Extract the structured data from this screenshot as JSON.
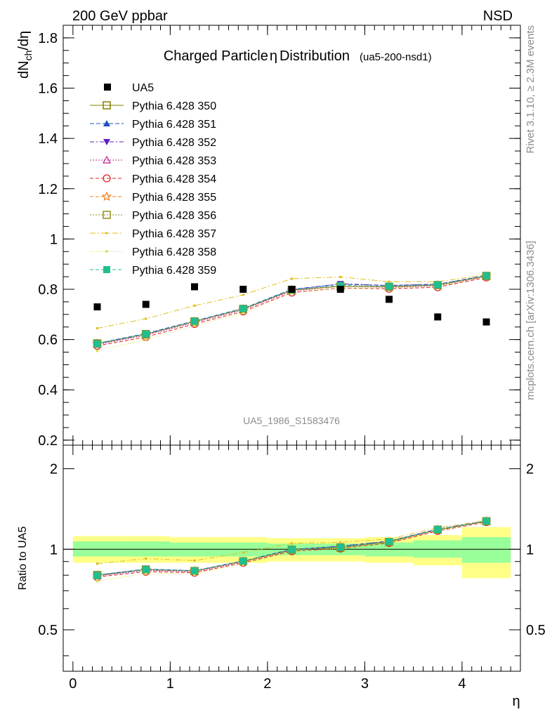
{
  "header": {
    "left": "200 GeV ppbar",
    "right": "NSD"
  },
  "side_labels": {
    "rivet": "Rivet 3.1.10, ≥ 2.3M events",
    "mcplots": "mcplots.cern.ch [arXiv:1306.3436]"
  },
  "chart_data": [
    {
      "type": "line",
      "title": "Charged Particle",
      "title_symbol": "η",
      "title_suffix": "Distribution",
      "subtitle": "(ua5-200-nsd1)",
      "ylabel_main": "dN",
      "ylabel_sub": "ch",
      "ylabel_tail": "/dη",
      "xlim": [
        -0.1,
        4.6
      ],
      "ylim": [
        0.18,
        1.85
      ],
      "x_ticks": [
        "0",
        "1",
        "2",
        "3",
        "4"
      ],
      "y_ticks": [
        "0.2",
        "0.4",
        "0.6",
        "0.8",
        "1",
        "1.2",
        "1.4",
        "1.6",
        "1.8"
      ],
      "watermark": "UA5_1986_S1583476",
      "legend_position": "top-left",
      "x": [
        0.25,
        0.75,
        1.25,
        1.75,
        2.25,
        2.75,
        3.25,
        3.75,
        4.25
      ],
      "data": {
        "name": "UA5",
        "values": [
          0.73,
          0.74,
          0.81,
          0.8,
          0.8,
          0.8,
          0.76,
          0.69,
          0.67
        ],
        "color": "#000000"
      },
      "series": [
        {
          "name": "Pythia 6.428 350",
          "color": "#808000",
          "marker": "square-open",
          "dash": "",
          "values": [
            0.585,
            0.622,
            0.672,
            0.722,
            0.797,
            0.812,
            0.81,
            0.817,
            0.853
          ]
        },
        {
          "name": "Pythia 6.428 351",
          "color": "#1f4fbf",
          "marker": "triangle-up",
          "dash": "6,3",
          "values": [
            0.585,
            0.624,
            0.674,
            0.724,
            0.8,
            0.82,
            0.815,
            0.82,
            0.855
          ]
        },
        {
          "name": "Pythia 6.428 352",
          "color": "#5b1fbf",
          "marker": "triangle-down",
          "dash": "6,3,2,3",
          "values": [
            0.583,
            0.621,
            0.672,
            0.722,
            0.798,
            0.822,
            0.815,
            0.82,
            0.854
          ]
        },
        {
          "name": "Pythia 6.428 353",
          "color": "#bf1f8f",
          "marker": "triangle-open",
          "dash": "2,2",
          "values": [
            0.58,
            0.617,
            0.668,
            0.718,
            0.793,
            0.812,
            0.808,
            0.814,
            0.851
          ]
        },
        {
          "name": "Pythia 6.428 354",
          "color": "#df1f1f",
          "marker": "circle-open",
          "dash": "5,3",
          "values": [
            0.575,
            0.61,
            0.662,
            0.712,
            0.787,
            0.805,
            0.802,
            0.808,
            0.847
          ]
        },
        {
          "name": "Pythia 6.428 355",
          "color": "#ef7f1f",
          "marker": "star-open",
          "dash": "5,3",
          "values": [
            0.583,
            0.62,
            0.671,
            0.721,
            0.796,
            0.812,
            0.81,
            0.817,
            0.852
          ]
        },
        {
          "name": "Pythia 6.428 356",
          "color": "#8f8f1f",
          "marker": "square-open",
          "dash": "2,2",
          "values": [
            0.584,
            0.621,
            0.672,
            0.722,
            0.797,
            0.812,
            0.81,
            0.817,
            0.853
          ]
        },
        {
          "name": "Pythia 6.428 357",
          "color": "#dfbf1f",
          "marker": "dot",
          "dash": "8,3,2,3",
          "values": [
            0.645,
            0.683,
            0.735,
            0.778,
            0.842,
            0.849,
            0.83,
            0.83,
            0.858
          ]
        },
        {
          "name": "Pythia 6.428 358",
          "color": "#cfdf3f",
          "marker": "dot",
          "dash": "1,2",
          "values": [
            0.555,
            0.6,
            0.655,
            0.705,
            0.785,
            0.805,
            0.805,
            0.812,
            0.85
          ]
        },
        {
          "name": "Pythia 6.428 359",
          "color": "#1fbf8f",
          "marker": "square",
          "dash": "5,3",
          "values": [
            0.583,
            0.622,
            0.673,
            0.723,
            0.798,
            0.815,
            0.812,
            0.818,
            0.854
          ]
        }
      ]
    },
    {
      "type": "line",
      "ylabel": "Ratio to UA5",
      "xlabel": "η",
      "scale": "log",
      "ylim": [
        0.35,
        2.45
      ],
      "y_ticks": [
        "0.5",
        "1",
        "2"
      ],
      "y_tick_values": [
        0.5,
        1,
        2
      ],
      "bands": {
        "x_edges": [
          0.0,
          0.5,
          1.0,
          1.5,
          2.0,
          2.5,
          3.0,
          3.5,
          4.0,
          4.5
        ],
        "inner_color": "#99ff99",
        "outer_color": "#ffff88",
        "inner": [
          [
            0.94,
            1.07
          ],
          [
            0.94,
            1.07
          ],
          [
            0.94,
            1.06
          ],
          [
            0.94,
            1.06
          ],
          [
            0.95,
            1.05
          ],
          [
            0.95,
            1.05
          ],
          [
            0.94,
            1.06
          ],
          [
            0.93,
            1.08
          ],
          [
            0.89,
            1.11
          ]
        ],
        "outer": [
          [
            0.89,
            1.12
          ],
          [
            0.89,
            1.12
          ],
          [
            0.89,
            1.11
          ],
          [
            0.89,
            1.11
          ],
          [
            0.9,
            1.1
          ],
          [
            0.9,
            1.1
          ],
          [
            0.89,
            1.11
          ],
          [
            0.87,
            1.13
          ],
          [
            0.78,
            1.21
          ]
        ]
      }
    }
  ]
}
